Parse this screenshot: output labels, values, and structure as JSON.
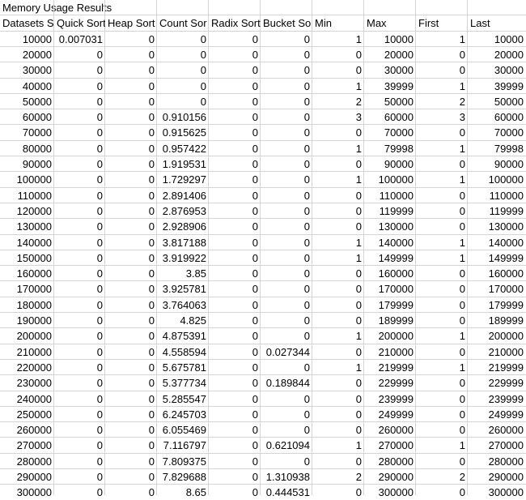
{
  "title": "Memory Usage Results",
  "headers": [
    "Datasets S",
    "Quick Sort",
    "Heap Sort",
    "Count Sor",
    "Radix Sort",
    "Bucket So",
    "Min",
    "Max",
    "First",
    "Last"
  ],
  "rows": [
    [
      "10000",
      "0.007031",
      "0",
      "0",
      "0",
      "0",
      "1",
      "10000",
      "1",
      "10000"
    ],
    [
      "20000",
      "0",
      "0",
      "0",
      "0",
      "0",
      "0",
      "20000",
      "0",
      "20000"
    ],
    [
      "30000",
      "0",
      "0",
      "0",
      "0",
      "0",
      "0",
      "30000",
      "0",
      "30000"
    ],
    [
      "40000",
      "0",
      "0",
      "0",
      "0",
      "0",
      "1",
      "39999",
      "1",
      "39999"
    ],
    [
      "50000",
      "0",
      "0",
      "0",
      "0",
      "0",
      "2",
      "50000",
      "2",
      "50000"
    ],
    [
      "60000",
      "0",
      "0",
      "0.910156",
      "0",
      "0",
      "3",
      "60000",
      "3",
      "60000"
    ],
    [
      "70000",
      "0",
      "0",
      "0.915625",
      "0",
      "0",
      "0",
      "70000",
      "0",
      "70000"
    ],
    [
      "80000",
      "0",
      "0",
      "0.957422",
      "0",
      "0",
      "1",
      "79998",
      "1",
      "79998"
    ],
    [
      "90000",
      "0",
      "0",
      "1.919531",
      "0",
      "0",
      "0",
      "90000",
      "0",
      "90000"
    ],
    [
      "100000",
      "0",
      "0",
      "1.729297",
      "0",
      "0",
      "1",
      "100000",
      "1",
      "100000"
    ],
    [
      "110000",
      "0",
      "0",
      "2.891406",
      "0",
      "0",
      "0",
      "110000",
      "0",
      "110000"
    ],
    [
      "120000",
      "0",
      "0",
      "2.876953",
      "0",
      "0",
      "0",
      "119999",
      "0",
      "119999"
    ],
    [
      "130000",
      "0",
      "0",
      "2.928906",
      "0",
      "0",
      "0",
      "130000",
      "0",
      "130000"
    ],
    [
      "140000",
      "0",
      "0",
      "3.817188",
      "0",
      "0",
      "1",
      "140000",
      "1",
      "140000"
    ],
    [
      "150000",
      "0",
      "0",
      "3.919922",
      "0",
      "0",
      "1",
      "149999",
      "1",
      "149999"
    ],
    [
      "160000",
      "0",
      "0",
      "3.85",
      "0",
      "0",
      "0",
      "160000",
      "0",
      "160000"
    ],
    [
      "170000",
      "0",
      "0",
      "3.925781",
      "0",
      "0",
      "0",
      "170000",
      "0",
      "170000"
    ],
    [
      "180000",
      "0",
      "0",
      "3.764063",
      "0",
      "0",
      "0",
      "179999",
      "0",
      "179999"
    ],
    [
      "190000",
      "0",
      "0",
      "4.825",
      "0",
      "0",
      "0",
      "189999",
      "0",
      "189999"
    ],
    [
      "200000",
      "0",
      "0",
      "4.875391",
      "0",
      "0",
      "1",
      "200000",
      "1",
      "200000"
    ],
    [
      "210000",
      "0",
      "0",
      "4.558594",
      "0",
      "0.027344",
      "0",
      "210000",
      "0",
      "210000"
    ],
    [
      "220000",
      "0",
      "0",
      "5.675781",
      "0",
      "0",
      "1",
      "219999",
      "1",
      "219999"
    ],
    [
      "230000",
      "0",
      "0",
      "5.377734",
      "0",
      "0.189844",
      "0",
      "229999",
      "0",
      "229999"
    ],
    [
      "240000",
      "0",
      "0",
      "5.285547",
      "0",
      "0",
      "0",
      "239999",
      "0",
      "239999"
    ],
    [
      "250000",
      "0",
      "0",
      "6.245703",
      "0",
      "0",
      "0",
      "249999",
      "0",
      "249999"
    ],
    [
      "260000",
      "0",
      "0",
      "6.055469",
      "0",
      "0",
      "0",
      "260000",
      "0",
      "260000"
    ],
    [
      "270000",
      "0",
      "0",
      "7.116797",
      "0",
      "0.621094",
      "1",
      "270000",
      "1",
      "270000"
    ],
    [
      "280000",
      "0",
      "0",
      "7.809375",
      "0",
      "0",
      "0",
      "280000",
      "0",
      "280000"
    ],
    [
      "290000",
      "0",
      "0",
      "7.829688",
      "0",
      "1.310938",
      "2",
      "290000",
      "2",
      "290000"
    ],
    [
      "300000",
      "0",
      "0",
      "8.65",
      "0",
      "0.444531",
      "0",
      "300000",
      "0",
      "300000"
    ]
  ]
}
